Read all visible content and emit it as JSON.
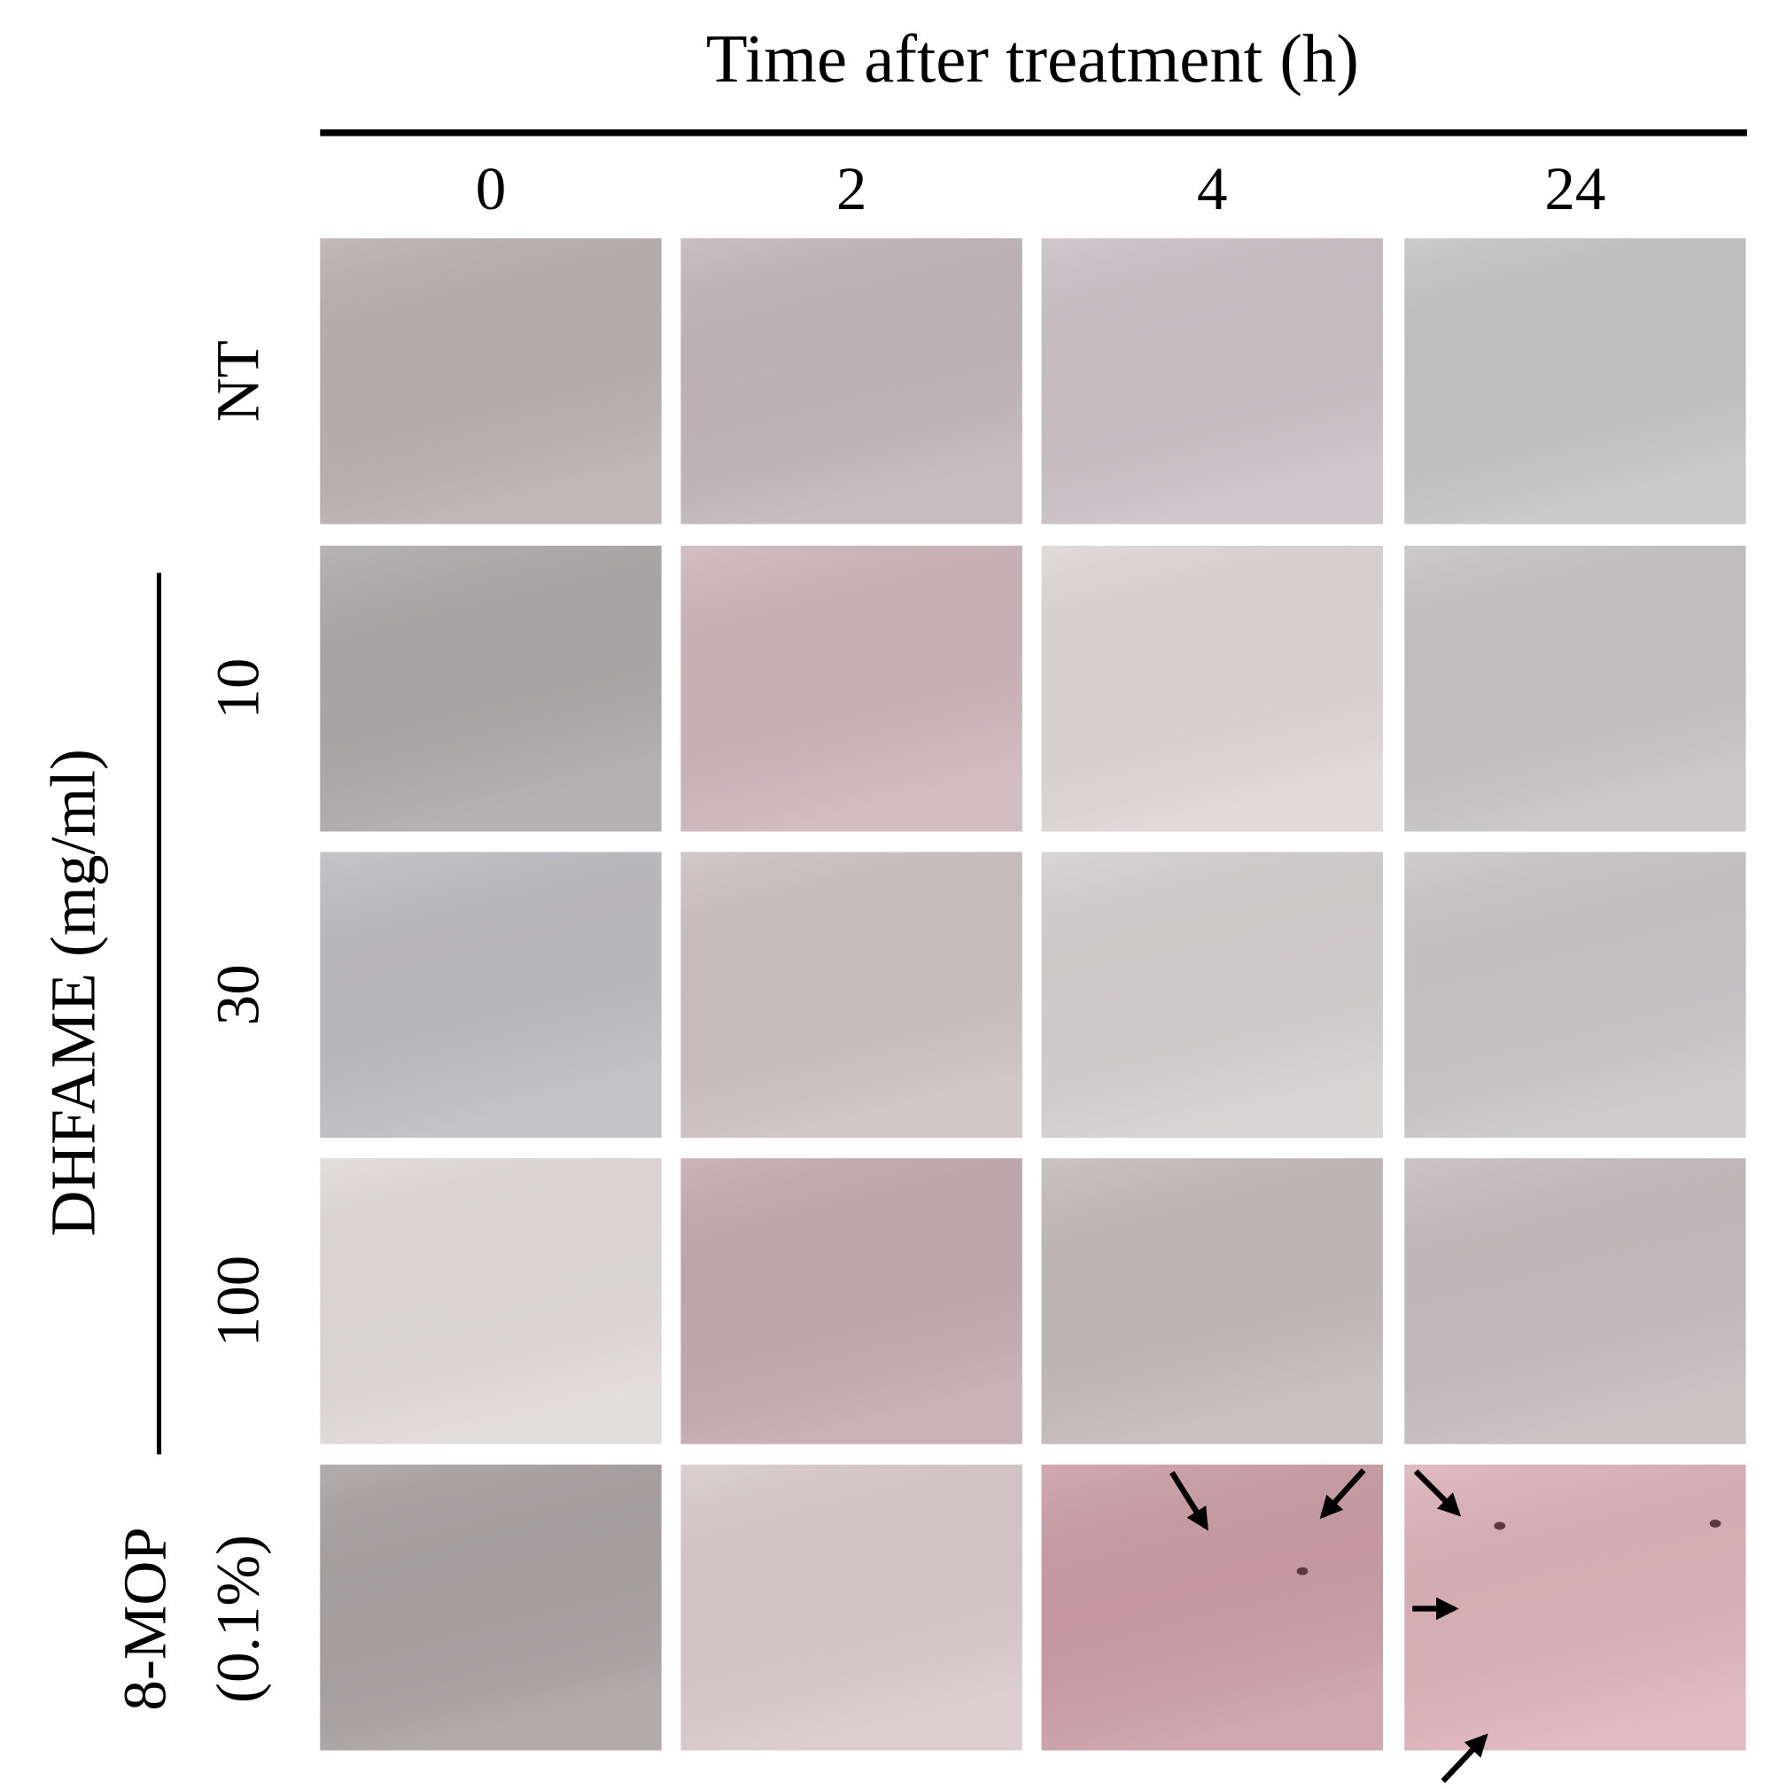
{
  "header": {
    "title": "Time after treatment (h)",
    "columns": [
      "0",
      "2",
      "4",
      "24"
    ]
  },
  "group_label": "DHFAME (mg/ml)",
  "rows": [
    {
      "label": "NT"
    },
    {
      "label": "10"
    },
    {
      "label": "30"
    },
    {
      "label": "100"
    },
    {
      "label": "8-MOP",
      "sublabel": "(0.1%)"
    }
  ]
}
